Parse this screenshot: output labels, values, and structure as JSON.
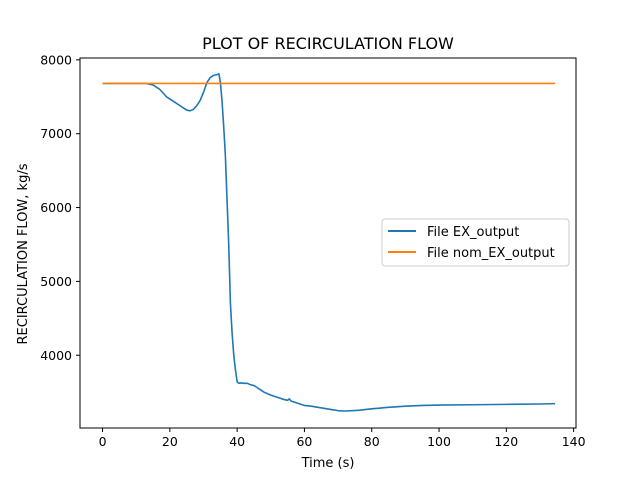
{
  "chart_data": {
    "type": "line",
    "title": "PLOT OF RECIRCULATION FLOW",
    "xlabel": "Time (s)",
    "ylabel": "RECIRCULATION FLOW, kg/s",
    "xlim": [
      -6.7,
      140.7
    ],
    "ylim": [
      3015,
      8025
    ],
    "xticks": [
      0,
      20,
      40,
      60,
      80,
      100,
      120,
      140
    ],
    "yticks": [
      4000,
      5000,
      6000,
      7000,
      8000
    ],
    "grid": false,
    "legend_position": "center-right",
    "series": [
      {
        "name": "File EX_output",
        "color": "#1f77b4",
        "x": [
          0,
          5,
          10,
          13,
          15,
          17,
          19,
          21,
          23,
          25,
          26,
          27,
          28,
          29,
          30,
          31,
          32,
          33,
          34,
          34.6,
          35,
          35.5,
          36,
          36.5,
          37,
          37.5,
          38,
          38.5,
          39,
          39.5,
          40,
          40.5,
          41,
          42,
          43,
          44,
          45,
          46,
          47,
          48,
          50,
          52,
          54,
          55,
          55.5,
          56,
          58,
          60,
          62,
          64,
          66,
          68,
          70,
          72,
          74,
          76,
          78,
          80,
          85,
          90,
          95,
          100,
          110,
          120,
          130,
          134.5
        ],
        "y": [
          7680,
          7680,
          7680,
          7680,
          7660,
          7600,
          7500,
          7440,
          7380,
          7320,
          7310,
          7330,
          7380,
          7450,
          7560,
          7690,
          7760,
          7790,
          7800,
          7810,
          7700,
          7450,
          7100,
          6700,
          6100,
          5500,
          4700,
          4300,
          4000,
          3800,
          3640,
          3620,
          3625,
          3620,
          3620,
          3600,
          3590,
          3560,
          3530,
          3500,
          3460,
          3430,
          3400,
          3390,
          3410,
          3380,
          3350,
          3320,
          3310,
          3295,
          3280,
          3265,
          3250,
          3245,
          3250,
          3255,
          3265,
          3275,
          3295,
          3310,
          3320,
          3325,
          3330,
          3335,
          3340,
          3345
        ]
      },
      {
        "name": "File nom_EX_output",
        "color": "#ff7f0e",
        "x": [
          0,
          134.5
        ],
        "y": [
          7680,
          7680
        ]
      }
    ]
  }
}
